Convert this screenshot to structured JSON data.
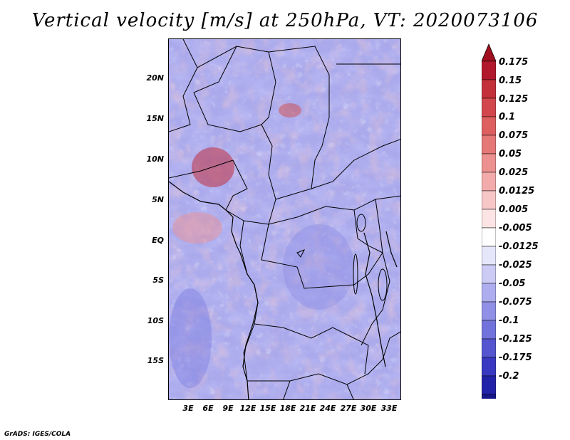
{
  "title": "Vertical velocity [m/s] at 250hPa, VT: 2020073106",
  "credit": "GrADS: IGES/COLA",
  "map": {
    "y_ticks": [
      "20N",
      "15N",
      "10N",
      "5N",
      "EQ",
      "5S",
      "10S",
      "15S"
    ],
    "x_ticks": [
      "3E",
      "6E",
      "9E",
      "12E",
      "15E",
      "18E",
      "21E",
      "24E",
      "27E",
      "30E",
      "33E"
    ],
    "lon_range_deg": [
      0,
      35
    ],
    "lat_range_deg": [
      -20,
      25
    ]
  },
  "colorbar": {
    "labels": [
      "0.175",
      "0.15",
      "0.125",
      "0.1",
      "0.075",
      "0.05",
      "0.025",
      "0.0125",
      "0.005",
      "-0.005",
      "-0.0125",
      "-0.025",
      "-0.05",
      "-0.075",
      "-0.1",
      "-0.125",
      "-0.175",
      "-0.2"
    ],
    "colors": [
      "#b2182b",
      "#c4303a",
      "#d2474c",
      "#de5f5f",
      "#e57777",
      "#ec9090",
      "#f2aaaa",
      "#f7c6c6",
      "#fce4e4",
      "#ffffff",
      "#e6e6fb",
      "#cbcbf5",
      "#adadef",
      "#9090e6",
      "#7272dc",
      "#5555d0",
      "#3838c0",
      "#2222a8",
      "#16168a"
    ],
    "top_arrow_color": "#a01020",
    "bottom_arrow_color": "#10107a"
  }
}
